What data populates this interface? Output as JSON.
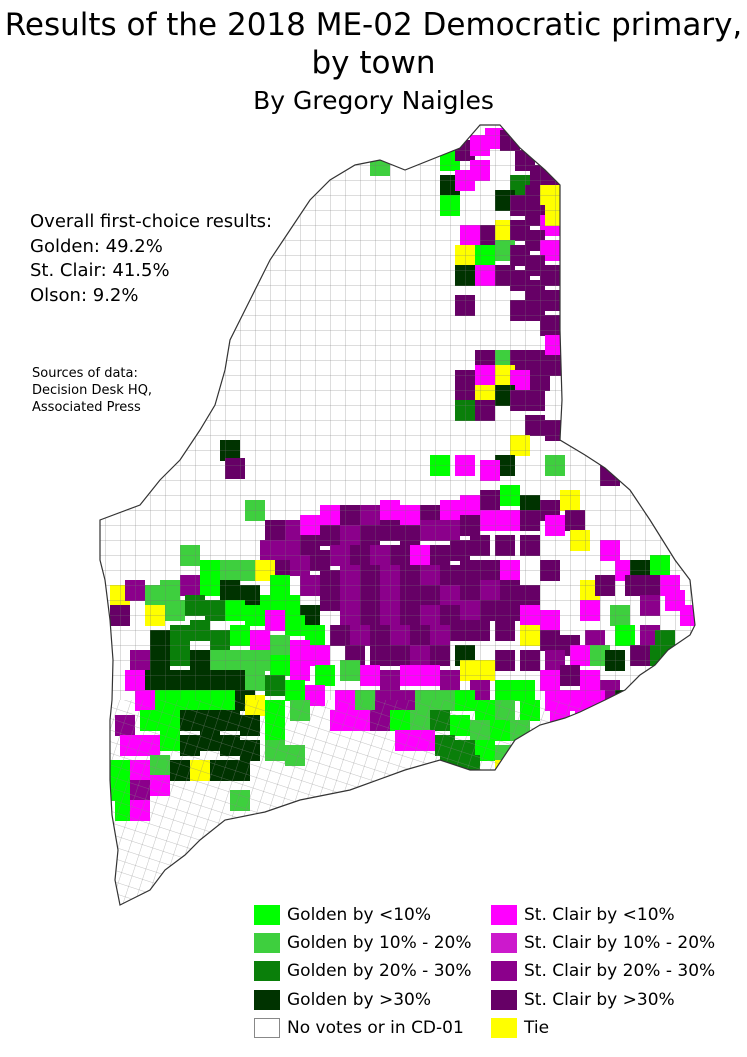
{
  "title": "Results of the 2018 ME-02 Democratic primary, by town",
  "subtitle": "By Gregory Naigles",
  "overall": {
    "heading": "Overall first-choice results:",
    "lines": [
      "Golden: 49.2%",
      "St. Clair: 41.5%",
      "Olson: 9.2%"
    ]
  },
  "sources": {
    "heading": "Sources of data:",
    "lines": [
      "Decision Desk HQ,",
      "Associated Press"
    ]
  },
  "legend": [
    {
      "label": "Golden by <10%",
      "color": "#00ff00"
    },
    {
      "label": "Golden by 10% - 20%",
      "color": "#3ecf3e"
    },
    {
      "label": "Golden by 20% - 30%",
      "color": "#0a7f0a"
    },
    {
      "label": "Golden by >30%",
      "color": "#003300"
    },
    {
      "label": "No votes or in CD-01",
      "color": "#ffffff"
    },
    {
      "label": "St. Clair by <10%",
      "color": "#ff00ff"
    },
    {
      "label": "St. Clair by 10% - 20%",
      "color": "#cc19cc"
    },
    {
      "label": "St. Clair by 20% - 30%",
      "color": "#8b008b"
    },
    {
      "label": "St. Clair by >30%",
      "color": "#660066"
    },
    {
      "label": "Tie",
      "color": "#ffff00"
    }
  ]
}
